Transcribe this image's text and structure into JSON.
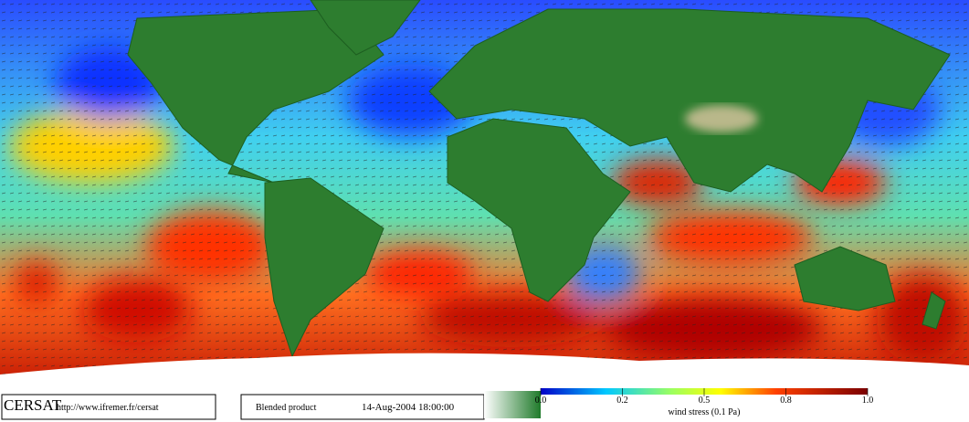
{
  "footer": {
    "logo": "CERSAT",
    "url": "http://www.ifremer.fr/cersat",
    "product": "Blended product",
    "date": "14-Aug-2004 18:00:00"
  },
  "colorbar": {
    "label": "wind stress (0.1 Pa)",
    "ticks": [
      {
        "value": 0,
        "label": "0.0"
      },
      0.2,
      0.5,
      0.8,
      {
        "value": 1,
        "label": "1.0"
      }
    ]
  }
}
